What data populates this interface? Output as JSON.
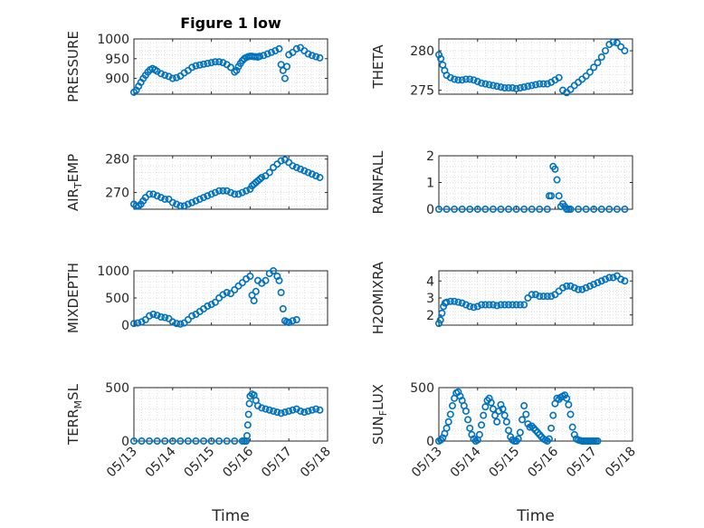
{
  "figure": {
    "title": "Figure 1 low"
  },
  "style": {
    "marker_color": "#0072BD",
    "grid_color": "#d9d9d9",
    "axis_color": "#262626"
  },
  "chart_data": [
    {
      "id": "pressure",
      "type": "scatter",
      "title": "Figure 1 low",
      "xlabel": "",
      "ylabel": "PRESSURE",
      "xlim": [
        0,
        5
      ],
      "ylim": [
        860,
        1000
      ],
      "yticks": [
        900,
        950,
        1000
      ],
      "xticks": [],
      "grid": "on",
      "series": [
        {
          "x": [
            0.0,
            0.06,
            0.12,
            0.18,
            0.24,
            0.3,
            0.36,
            0.42,
            0.48,
            0.54,
            0.6,
            0.7,
            0.8,
            0.9,
            1.0,
            1.1,
            1.2,
            1.3,
            1.4,
            1.5,
            1.6,
            1.7,
            1.8,
            1.9,
            2.0,
            2.1,
            2.2,
            2.3,
            2.4,
            2.5,
            2.6,
            2.65,
            2.7,
            2.75,
            2.8,
            2.85,
            2.9,
            2.95,
            3.0,
            3.05,
            3.1,
            3.15,
            3.2,
            3.25,
            3.35,
            3.45,
            3.55,
            3.65,
            3.75,
            3.8,
            3.85,
            3.9,
            3.95,
            4.0,
            4.1,
            4.2,
            4.3,
            4.4,
            4.5,
            4.6,
            4.7,
            4.8
          ],
          "y": [
            865,
            870,
            880,
            890,
            900,
            908,
            916,
            922,
            925,
            922,
            918,
            912,
            908,
            905,
            900,
            902,
            906,
            914,
            920,
            928,
            932,
            934,
            936,
            938,
            940,
            942,
            942,
            940,
            935,
            928,
            916,
            920,
            930,
            938,
            945,
            950,
            953,
            955,
            956,
            956,
            955,
            955,
            954,
            956,
            958,
            962,
            966,
            970,
            975,
            935,
            920,
            900,
            930,
            960,
            966,
            975,
            978,
            970,
            962,
            958,
            955,
            952
          ]
        }
      ]
    },
    {
      "id": "theta",
      "type": "scatter",
      "xlabel": "",
      "ylabel": "THETA",
      "xlim": [
        0,
        5
      ],
      "ylim": [
        274.5,
        281.5
      ],
      "yticks": [
        275,
        280
      ],
      "xticks": [],
      "grid": "on",
      "series": [
        {
          "x": [
            0.0,
            0.05,
            0.1,
            0.15,
            0.2,
            0.3,
            0.4,
            0.5,
            0.6,
            0.7,
            0.8,
            0.9,
            1.0,
            1.1,
            1.2,
            1.3,
            1.4,
            1.5,
            1.6,
            1.7,
            1.8,
            1.9,
            2.0,
            2.1,
            2.2,
            2.3,
            2.4,
            2.5,
            2.6,
            2.7,
            2.8,
            2.9,
            3.0,
            3.1,
            3.2,
            3.3,
            3.4,
            3.5,
            3.6,
            3.7,
            3.8,
            3.9,
            4.0,
            4.1,
            4.2,
            4.3,
            4.4,
            4.5,
            4.6,
            4.7,
            4.8
          ],
          "y": [
            279.5,
            279.0,
            278.2,
            277.5,
            276.9,
            276.6,
            276.4,
            276.3,
            276.3,
            276.4,
            276.4,
            276.3,
            276.1,
            275.9,
            275.8,
            275.7,
            275.6,
            275.5,
            275.4,
            275.3,
            275.3,
            275.3,
            275.2,
            275.3,
            275.4,
            275.5,
            275.6,
            275.7,
            275.8,
            275.8,
            275.8,
            276.0,
            276.3,
            276.6,
            275.0,
            274.7,
            275.1,
            275.6,
            276.0,
            276.4,
            276.8,
            277.3,
            277.9,
            278.5,
            279.2,
            280.0,
            280.8,
            281.1,
            281.0,
            280.5,
            280.0
          ]
        }
      ]
    },
    {
      "id": "airtemp",
      "type": "scatter",
      "xlabel": "",
      "ylabel": "AIR",
      "ylabel_sub": "T",
      "ylabel_tail": "EMP",
      "xlim": [
        0,
        5
      ],
      "ylim": [
        265,
        281
      ],
      "yticks": [
        270,
        280
      ],
      "xticks": [],
      "grid": "on",
      "series": [
        {
          "x": [
            0.0,
            0.06,
            0.12,
            0.18,
            0.24,
            0.3,
            0.4,
            0.5,
            0.6,
            0.7,
            0.8,
            0.9,
            1.0,
            1.1,
            1.2,
            1.3,
            1.4,
            1.5,
            1.6,
            1.7,
            1.8,
            1.9,
            2.0,
            2.1,
            2.2,
            2.3,
            2.4,
            2.5,
            2.6,
            2.7,
            2.8,
            2.9,
            3.0,
            3.05,
            3.1,
            3.15,
            3.2,
            3.25,
            3.3,
            3.4,
            3.5,
            3.6,
            3.7,
            3.8,
            3.9,
            4.0,
            4.1,
            4.2,
            4.3,
            4.4,
            4.5,
            4.6,
            4.7,
            4.8
          ],
          "y": [
            266.5,
            266.0,
            266.0,
            266.5,
            267.5,
            268.5,
            269.5,
            269.5,
            269.0,
            268.5,
            268.0,
            268.0,
            267.0,
            266.5,
            266.0,
            266.0,
            266.5,
            267.0,
            267.5,
            268.0,
            268.5,
            269.0,
            269.5,
            270.0,
            270.5,
            270.5,
            270.5,
            270.0,
            269.5,
            269.5,
            270.0,
            270.5,
            271.0,
            272.0,
            272.5,
            273.0,
            273.5,
            274.0,
            274.5,
            275.0,
            276.0,
            277.5,
            278.5,
            279.5,
            279.8,
            279.0,
            278.0,
            277.5,
            277.0,
            276.5,
            276.0,
            275.5,
            275.0,
            274.5
          ]
        }
      ]
    },
    {
      "id": "rainfall",
      "type": "scatter",
      "xlabel": "",
      "ylabel": "RAINFALL",
      "xlim": [
        0,
        5
      ],
      "ylim": [
        0,
        2
      ],
      "yticks": [
        0,
        1,
        2
      ],
      "xticks": [],
      "grid": "on",
      "series": [
        {
          "x": [
            0.0,
            0.2,
            0.4,
            0.6,
            0.8,
            1.0,
            1.2,
            1.4,
            1.6,
            1.8,
            2.0,
            2.2,
            2.4,
            2.6,
            2.8,
            2.85,
            2.9,
            2.95,
            3.0,
            3.05,
            3.1,
            3.15,
            3.2,
            3.25,
            3.3,
            3.35,
            3.4,
            3.6,
            3.8,
            4.0,
            4.2,
            4.4,
            4.6,
            4.8
          ],
          "y": [
            0,
            0,
            0,
            0,
            0,
            0,
            0,
            0,
            0,
            0,
            0,
            0,
            0,
            0,
            0,
            0.5,
            0.5,
            1.6,
            1.5,
            1.1,
            0.5,
            0.1,
            0.2,
            0.1,
            0,
            0,
            0,
            0,
            0,
            0,
            0,
            0,
            0,
            0
          ]
        }
      ]
    },
    {
      "id": "mixdepth",
      "type": "scatter",
      "xlabel": "",
      "ylabel": "MIXDEPTH",
      "xlim": [
        0,
        5
      ],
      "ylim": [
        0,
        1000
      ],
      "yticks": [
        0,
        500,
        1000
      ],
      "xticks": [],
      "grid": "on",
      "series": [
        {
          "x": [
            0.0,
            0.1,
            0.2,
            0.3,
            0.4,
            0.5,
            0.6,
            0.7,
            0.8,
            0.9,
            1.0,
            1.1,
            1.2,
            1.3,
            1.4,
            1.5,
            1.6,
            1.7,
            1.8,
            1.9,
            2.0,
            2.1,
            2.2,
            2.3,
            2.4,
            2.5,
            2.6,
            2.7,
            2.8,
            2.9,
            3.0,
            3.05,
            3.1,
            3.15,
            3.2,
            3.3,
            3.4,
            3.5,
            3.6,
            3.7,
            3.75,
            3.8,
            3.85,
            3.9,
            3.95,
            4.0,
            4.1,
            4.2
          ],
          "y": [
            30,
            40,
            60,
            100,
            170,
            200,
            180,
            150,
            140,
            120,
            60,
            30,
            20,
            40,
            100,
            170,
            200,
            250,
            300,
            350,
            380,
            420,
            500,
            560,
            600,
            580,
            650,
            720,
            780,
            850,
            900,
            550,
            450,
            620,
            820,
            770,
            820,
            950,
            1000,
            900,
            820,
            600,
            300,
            80,
            60,
            50,
            80,
            100
          ]
        }
      ]
    },
    {
      "id": "h2omixra",
      "type": "scatter",
      "xlabel": "",
      "ylabel": "H2OMIXRA",
      "xlim": [
        0,
        5
      ],
      "ylim": [
        1.4,
        4.6
      ],
      "yticks": [
        2,
        3,
        4
      ],
      "xticks": [],
      "grid": "on",
      "series": [
        {
          "x": [
            0.0,
            0.04,
            0.08,
            0.12,
            0.16,
            0.2,
            0.3,
            0.4,
            0.5,
            0.6,
            0.7,
            0.8,
            0.9,
            1.0,
            1.1,
            1.2,
            1.3,
            1.4,
            1.5,
            1.6,
            1.7,
            1.8,
            1.9,
            2.0,
            2.1,
            2.2,
            2.3,
            2.4,
            2.5,
            2.6,
            2.7,
            2.8,
            2.9,
            3.0,
            3.1,
            3.2,
            3.3,
            3.4,
            3.5,
            3.6,
            3.7,
            3.8,
            3.9,
            4.0,
            4.1,
            4.2,
            4.3,
            4.4,
            4.5,
            4.6,
            4.7,
            4.8
          ],
          "y": [
            1.5,
            1.7,
            2.1,
            2.5,
            2.7,
            2.75,
            2.8,
            2.8,
            2.75,
            2.7,
            2.6,
            2.5,
            2.45,
            2.5,
            2.6,
            2.6,
            2.6,
            2.6,
            2.55,
            2.6,
            2.6,
            2.6,
            2.6,
            2.6,
            2.6,
            2.6,
            3.0,
            3.2,
            3.2,
            3.1,
            3.1,
            3.1,
            3.1,
            3.2,
            3.4,
            3.6,
            3.7,
            3.7,
            3.6,
            3.5,
            3.5,
            3.6,
            3.7,
            3.8,
            3.9,
            4.0,
            4.1,
            4.2,
            4.2,
            4.3,
            4.1,
            4.0
          ]
        }
      ]
    },
    {
      "id": "terrmsl",
      "type": "scatter",
      "xlabel": "Time",
      "ylabel": "TERR",
      "ylabel_sub": "M",
      "ylabel_tail": "SL",
      "xlim": [
        0,
        5
      ],
      "ylim": [
        0,
        500
      ],
      "yticks": [
        0,
        500
      ],
      "xticks": [
        0,
        1,
        2,
        3,
        4,
        5
      ],
      "xticklabels": [
        "05/13",
        "05/14",
        "05/15",
        "05/16",
        "05/17",
        "05/18"
      ],
      "grid": "on",
      "series": [
        {
          "x": [
            0.0,
            0.2,
            0.4,
            0.6,
            0.8,
            1.0,
            1.2,
            1.4,
            1.6,
            1.8,
            2.0,
            2.2,
            2.4,
            2.6,
            2.8,
            2.85,
            2.9,
            2.92,
            2.94,
            2.96,
            2.98,
            3.0,
            3.05,
            3.1,
            3.15,
            3.2,
            3.3,
            3.4,
            3.5,
            3.6,
            3.7,
            3.8,
            3.9,
            4.0,
            4.1,
            4.2,
            4.3,
            4.4,
            4.5,
            4.6,
            4.7,
            4.8
          ],
          "y": [
            0,
            0,
            0,
            0,
            0,
            0,
            0,
            0,
            0,
            0,
            0,
            0,
            0,
            0,
            0,
            0,
            0,
            50,
            150,
            250,
            350,
            420,
            440,
            430,
            380,
            330,
            310,
            300,
            290,
            280,
            270,
            260,
            270,
            280,
            290,
            300,
            280,
            270,
            280,
            290,
            300,
            290
          ]
        }
      ]
    },
    {
      "id": "sunflux",
      "type": "scatter",
      "xlabel": "Time",
      "ylabel": "SUN",
      "ylabel_sub": "F",
      "ylabel_tail": "LUX",
      "xlim": [
        0,
        5
      ],
      "ylim": [
        0,
        500
      ],
      "yticks": [
        0,
        500
      ],
      "xticks": [
        0,
        1,
        2,
        3,
        4,
        5
      ],
      "xticklabels": [
        "05/13",
        "05/14",
        "05/15",
        "05/16",
        "05/17",
        "05/18"
      ],
      "grid": "on",
      "series": [
        {
          "x": [
            0.0,
            0.05,
            0.1,
            0.15,
            0.2,
            0.25,
            0.3,
            0.35,
            0.4,
            0.45,
            0.5,
            0.55,
            0.6,
            0.65,
            0.7,
            0.75,
            0.8,
            0.85,
            0.9,
            0.95,
            1.0,
            1.05,
            1.1,
            1.15,
            1.2,
            1.25,
            1.3,
            1.35,
            1.4,
            1.45,
            1.5,
            1.55,
            1.6,
            1.65,
            1.7,
            1.75,
            1.8,
            1.85,
            1.9,
            1.95,
            2.0,
            2.05,
            2.1,
            2.15,
            2.2,
            2.25,
            2.3,
            2.35,
            2.4,
            2.45,
            2.5,
            2.55,
            2.6,
            2.65,
            2.7,
            2.75,
            2.8,
            2.85,
            2.9,
            2.95,
            3.0,
            3.05,
            3.1,
            3.15,
            3.2,
            3.25,
            3.3,
            3.35,
            3.4,
            3.45,
            3.5,
            3.55,
            3.6,
            3.65,
            3.7,
            3.75,
            3.8,
            3.85,
            3.9,
            3.95,
            4.0,
            4.05,
            4.1
          ],
          "y": [
            0,
            10,
            30,
            70,
            120,
            180,
            250,
            330,
            400,
            450,
            460,
            420,
            380,
            330,
            280,
            200,
            120,
            60,
            20,
            0,
            10,
            60,
            150,
            240,
            320,
            380,
            400,
            360,
            300,
            240,
            180,
            280,
            340,
            300,
            240,
            180,
            100,
            40,
            10,
            0,
            0,
            20,
            80,
            200,
            330,
            250,
            160,
            130,
            140,
            120,
            100,
            80,
            60,
            40,
            20,
            10,
            0,
            20,
            120,
            240,
            350,
            400,
            390,
            410,
            420,
            430,
            400,
            340,
            250,
            130,
            60,
            20,
            10,
            5,
            0,
            0,
            0,
            0,
            0,
            0,
            0,
            0,
            0
          ]
        }
      ]
    }
  ]
}
